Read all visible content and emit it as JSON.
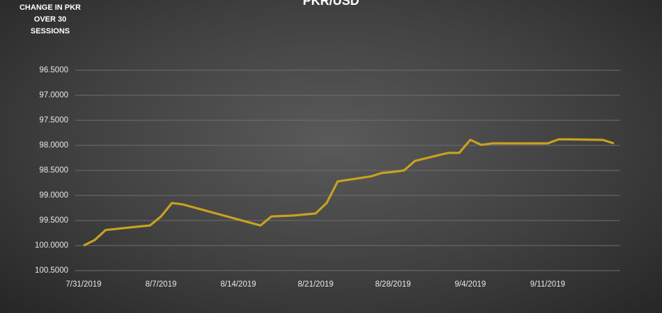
{
  "chart_data": {
    "type": "line",
    "title": "PKR/USD",
    "annotation": "CHANGE IN PKR OVER 30 SESSIONS",
    "x": [
      "7/31/2019",
      "8/1/2019",
      "8/2/2019",
      "8/5/2019",
      "8/6/2019",
      "8/7/2019",
      "8/8/2019",
      "8/9/2019",
      "8/16/2019",
      "8/17/2019",
      "8/19/2019",
      "8/20/2019",
      "8/21/2019",
      "8/22/2019",
      "8/23/2019",
      "8/26/2019",
      "8/27/2019",
      "8/28/2019",
      "8/29/2019",
      "8/30/2019",
      "9/2/2019",
      "9/3/2019",
      "9/4/2019",
      "9/5/2019",
      "9/6/2019",
      "9/9/2019",
      "9/10/2019",
      "9/11/2019",
      "9/12/2019",
      "9/13/2019",
      "9/16/2019",
      "9/17/2019"
    ],
    "series": [
      {
        "name": "PKR/USD",
        "color": "#c9a21f",
        "values": [
          100.0,
          99.89,
          99.69,
          99.62,
          99.6,
          99.42,
          99.15,
          99.18,
          99.6,
          99.42,
          99.4,
          99.38,
          99.36,
          99.15,
          98.72,
          98.62,
          98.55,
          98.53,
          98.5,
          98.31,
          98.15,
          98.15,
          97.89,
          97.99,
          97.96,
          97.96,
          97.96,
          97.96,
          97.88,
          97.88,
          97.89,
          97.96
        ]
      }
    ],
    "xlim": [
      "7/31/2019",
      "9/17/2019"
    ],
    "xticks": [
      "7/31/2019",
      "8/7/2019",
      "8/14/2019",
      "8/21/2019",
      "8/28/2019",
      "9/4/2019",
      "9/11/2019"
    ],
    "ylim": [
      96.5,
      100.5
    ],
    "y_inverted": true,
    "yticks": [
      {
        "value": 96.5,
        "label": "96.5000"
      },
      {
        "value": 97,
        "label": "97.0000"
      },
      {
        "value": 97.5,
        "label": "97.5000"
      },
      {
        "value": 98,
        "label": "98.0000"
      },
      {
        "value": 98.5,
        "label": "98.5000"
      },
      {
        "value": 99,
        "label": "99.0000"
      },
      {
        "value": 99.5,
        "label": "99.5000"
      },
      {
        "value": 100,
        "label": "100.0000"
      },
      {
        "value": 100.5,
        "label": "100.5000"
      }
    ],
    "grid": true
  }
}
